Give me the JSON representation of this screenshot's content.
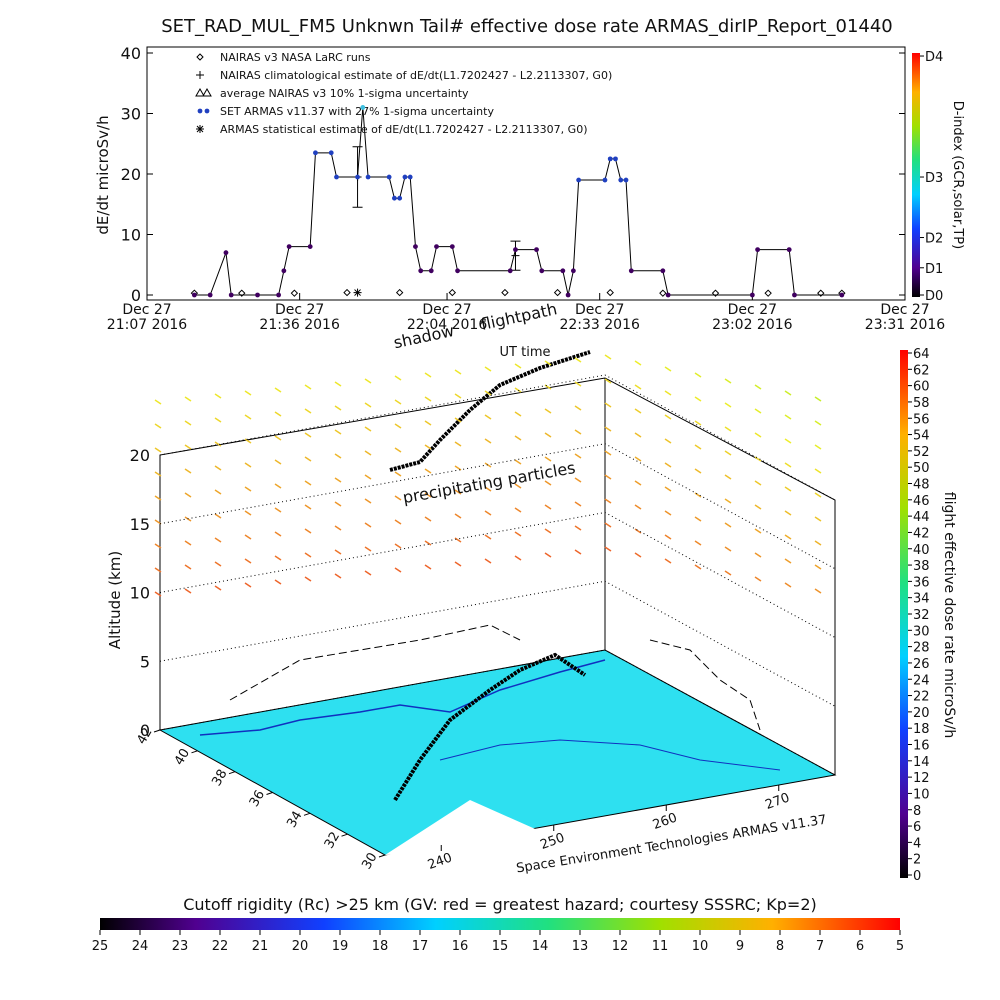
{
  "chart_data": [
    {
      "type": "line",
      "title": "SET_RAD_MUL_FM5 Unknwn Tail#  effective dose rate ARMAS_dirIP_Report_01440",
      "ylabel": "dE/dt microSv/h",
      "xlabel": "UT time",
      "xlim": [
        "21:07",
        "23:31"
      ],
      "xticks": [
        {
          "value": "21:07",
          "label": "Dec 27\n21:07 2016"
        },
        {
          "value": "21:36",
          "label": "Dec 27\n21:36 2016"
        },
        {
          "value": "22:04",
          "label": "Dec 27\n22:04 2016"
        },
        {
          "value": "22:33",
          "label": "Dec 27\n22:33 2016"
        },
        {
          "value": "23:02",
          "label": "Dec 27\n23:02 2016"
        },
        {
          "value": "23:31",
          "label": "Dec 27\n23:31 2016"
        }
      ],
      "ylim": [
        0,
        40
      ],
      "yticks": [
        0,
        10,
        20,
        30,
        40
      ],
      "y2label": "D-index (GCR,solar,TP)",
      "y2lim": [
        0,
        40
      ],
      "y2ticks": [
        {
          "value": 0,
          "label": "D0"
        },
        {
          "value": 4.5,
          "label": "D1"
        },
        {
          "value": 9.5,
          "label": "D2"
        },
        {
          "value": 19.5,
          "label": "D3"
        },
        {
          "value": 39.5,
          "label": "D4"
        }
      ],
      "series": [
        {
          "name": "NAIRAS v3 NASA LaRC runs",
          "marker": "diamond",
          "color": "#000000",
          "x": [
            "21:16",
            "21:25",
            "21:35",
            "21:45",
            "21:55",
            "22:05",
            "22:15",
            "22:25",
            "22:35",
            "22:45",
            "22:55",
            "23:05",
            "23:15",
            "23:19"
          ],
          "values": [
            0.3,
            0.3,
            0.3,
            0.4,
            0.4,
            0.4,
            0.4,
            0.4,
            0.4,
            0.3,
            0.3,
            0.3,
            0.3,
            0.3
          ]
        },
        {
          "name": "NAIRAS climatological estimate of dE/dt(L1.7202427 - L2.2113307, G0)",
          "marker": "plus",
          "color": "#000000",
          "x": [
            "21:47",
            "22:17"
          ],
          "values": [
            19.5,
            6.5
          ],
          "errors": [
            5,
            2.4
          ]
        },
        {
          "name": "average NAIRAS v3 10% 1-sigma uncertainty",
          "marker": "triangle",
          "color": "#000000"
        },
        {
          "name": "SET ARMAS v11.37 with 27% 1-sigma uncertainty",
          "marker": "dot",
          "color": "#2040c0",
          "x": [
            "21:16",
            "21:19",
            "21:22",
            "21:23",
            "21:28",
            "21:32",
            "21:33",
            "21:34",
            "21:38",
            "21:39",
            "21:42",
            "21:43",
            "21:47",
            "21:48",
            "21:49",
            "21:53",
            "21:54",
            "21:55",
            "21:56",
            "21:57",
            "21:58",
            "21:59",
            "22:01",
            "22:02",
            "22:05",
            "22:06",
            "22:16",
            "22:17",
            "22:21",
            "22:22",
            "22:26",
            "22:27",
            "22:28",
            "22:29",
            "22:34",
            "22:35",
            "22:36",
            "22:37",
            "22:38",
            "22:39",
            "22:45",
            "22:46",
            "23:02",
            "23:03",
            "23:09",
            "23:10",
            "23:19"
          ],
          "values": [
            0,
            0,
            7,
            0,
            0,
            0,
            4,
            8,
            8,
            23.5,
            23.5,
            19.5,
            19.5,
            31,
            19.5,
            19.5,
            16,
            16,
            19.5,
            19.5,
            8,
            4,
            4,
            8,
            8,
            4,
            4,
            7.5,
            7.5,
            4,
            4,
            0,
            4,
            19,
            19,
            22.5,
            22.5,
            19,
            19,
            4,
            4,
            0,
            0,
            7.5,
            7.5,
            0,
            0
          ]
        },
        {
          "name": "ARMAS statistical estimate of dE/dt(L1.7202427 - L2.2113307, G0)",
          "marker": "asterisk",
          "color": "#000000",
          "x": [
            "21:47"
          ],
          "values": [
            0.4
          ]
        }
      ]
    },
    {
      "type": "surface3d",
      "annotations": [
        "shadow",
        "flightpath",
        "precipitating particles"
      ],
      "zlabel": "Altitude (km)",
      "zlim": [
        0,
        20
      ],
      "zticks": [
        0,
        5,
        10,
        15,
        20
      ],
      "ylim": [
        42,
        30
      ],
      "yticks": [
        30,
        32,
        34,
        36,
        38,
        40,
        42
      ],
      "xlim": [
        235,
        275
      ],
      "xticks": [
        240,
        250,
        260,
        270
      ],
      "footer": "Space Environment Technologies ARMAS v11.37"
    },
    {
      "type": "colorbar",
      "orientation": "vertical",
      "label": "flight effective dose rate microSv/h",
      "ylim": [
        0,
        64
      ],
      "yticks": [
        0,
        2,
        4,
        6,
        8,
        10,
        12,
        14,
        16,
        18,
        20,
        22,
        24,
        26,
        28,
        30,
        32,
        34,
        36,
        38,
        40,
        42,
        44,
        46,
        48,
        50,
        52,
        54,
        56,
        58,
        60,
        62,
        64
      ]
    },
    {
      "type": "colorbar",
      "orientation": "horizontal",
      "label": "Cutoff rigidity (Rc) >25 km (GV: red = greatest hazard; courtesy SSSRC; Kp=2)",
      "xlim": [
        25,
        5
      ],
      "xticks": [
        25,
        24,
        23,
        22,
        21,
        20,
        19,
        18,
        17,
        16,
        15,
        14,
        13,
        12,
        11,
        10,
        9,
        8,
        7,
        6,
        5
      ]
    }
  ]
}
